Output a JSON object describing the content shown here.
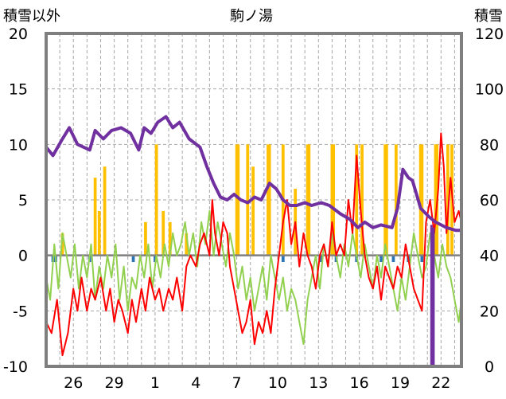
{
  "chart_data": {
    "type": "line",
    "title": "駒ノ湯",
    "left_axis_label": "積雪以外",
    "right_axis_label": "積雪",
    "left_ylim": [
      -10,
      20
    ],
    "right_ylim": [
      0,
      120
    ],
    "left_ticks": [
      "20",
      "15",
      "10",
      "5",
      "0",
      "-5",
      "-10"
    ],
    "right_ticks": [
      "120",
      "100",
      "80",
      "60",
      "40",
      "20",
      "0"
    ],
    "x_ticks": [
      "26",
      "29",
      "1",
      "4",
      "7",
      "10",
      "13",
      "16",
      "19",
      "22"
    ],
    "x_tick_days": [
      2,
      5,
      8,
      11,
      14,
      17,
      20,
      23,
      26,
      29
    ],
    "x_range_days": [
      0,
      30.5
    ],
    "grid": true,
    "colors": {
      "snow_depth": "#7030a0",
      "temperature_max": "#ff0000",
      "temperature_min": "#92d050",
      "precipitation": "#ffc000",
      "snow_change": "#2e75b6",
      "frame": "#7f7f7f"
    },
    "series": [
      {
        "key": "snow_depth",
        "axis": "right",
        "points": [
          [
            0,
            79
          ],
          [
            0.5,
            76
          ],
          [
            1.2,
            82
          ],
          [
            1.7,
            86
          ],
          [
            2.3,
            80
          ],
          [
            3.2,
            78
          ],
          [
            3.6,
            85
          ],
          [
            4.2,
            82
          ],
          [
            4.8,
            85
          ],
          [
            5.5,
            86
          ],
          [
            6.2,
            84
          ],
          [
            6.8,
            78
          ],
          [
            7.2,
            86
          ],
          [
            7.7,
            84
          ],
          [
            8.2,
            88
          ],
          [
            8.8,
            90
          ],
          [
            9.3,
            86
          ],
          [
            9.8,
            88
          ],
          [
            10.5,
            82
          ],
          [
            11.3,
            79
          ],
          [
            11.8,
            72
          ],
          [
            12.3,
            66
          ],
          [
            12.8,
            61
          ],
          [
            13.3,
            60
          ],
          [
            13.8,
            62
          ],
          [
            14.3,
            60
          ],
          [
            14.8,
            59
          ],
          [
            15.3,
            61
          ],
          [
            15.8,
            60
          ],
          [
            16.4,
            66
          ],
          [
            16.9,
            64
          ],
          [
            17.4,
            60
          ],
          [
            17.9,
            58
          ],
          [
            18.4,
            58
          ],
          [
            19.0,
            59
          ],
          [
            19.5,
            58
          ],
          [
            20.2,
            59
          ],
          [
            20.8,
            58
          ],
          [
            21.6,
            55
          ],
          [
            22.3,
            53
          ],
          [
            22.9,
            50
          ],
          [
            23.4,
            52
          ],
          [
            24.0,
            50
          ],
          [
            24.6,
            51
          ],
          [
            25.4,
            50
          ],
          [
            25.8,
            57
          ],
          [
            26.2,
            71
          ],
          [
            26.6,
            68
          ],
          [
            26.9,
            67
          ],
          [
            27.5,
            57
          ],
          [
            28.1,
            54
          ],
          [
            28.6,
            52
          ],
          [
            29.4,
            50
          ],
          [
            30.1,
            49
          ],
          [
            30.5,
            49
          ]
        ]
      },
      {
        "key": "snow_depth_drop",
        "axis": "right",
        "points": [
          [
            28.3,
            51
          ],
          [
            28.3,
            0
          ],
          [
            28.45,
            0
          ],
          [
            28.45,
            50
          ]
        ]
      },
      {
        "key": "temperature_max",
        "axis": "left",
        "points": [
          [
            0,
            -6
          ],
          [
            0.4,
            -7
          ],
          [
            0.8,
            -4
          ],
          [
            1.2,
            -9
          ],
          [
            1.6,
            -7
          ],
          [
            2.0,
            -3
          ],
          [
            2.3,
            -5
          ],
          [
            2.6,
            -2
          ],
          [
            3.0,
            -5
          ],
          [
            3.3,
            -3
          ],
          [
            3.6,
            -4
          ],
          [
            4.0,
            -2
          ],
          [
            4.4,
            -5
          ],
          [
            4.7,
            -3
          ],
          [
            5.0,
            -6
          ],
          [
            5.3,
            -4
          ],
          [
            5.6,
            -5
          ],
          [
            6.0,
            -7
          ],
          [
            6.3,
            -4
          ],
          [
            6.6,
            -6
          ],
          [
            7.0,
            -3
          ],
          [
            7.3,
            -5
          ],
          [
            7.6,
            -2
          ],
          [
            8.0,
            -4
          ],
          [
            8.3,
            -3
          ],
          [
            8.6,
            -5
          ],
          [
            9.0,
            -3
          ],
          [
            9.3,
            -4
          ],
          [
            9.6,
            -2
          ],
          [
            10.0,
            -5
          ],
          [
            10.3,
            -1
          ],
          [
            10.6,
            0
          ],
          [
            11.0,
            -1
          ],
          [
            11.3,
            1
          ],
          [
            11.6,
            2
          ],
          [
            12.0,
            0
          ],
          [
            12.2,
            5
          ],
          [
            12.4,
            2
          ],
          [
            12.7,
            0
          ],
          [
            13.0,
            3
          ],
          [
            13.3,
            2
          ],
          [
            13.5,
            -1
          ],
          [
            13.8,
            -3
          ],
          [
            14.1,
            -5
          ],
          [
            14.4,
            -7
          ],
          [
            14.7,
            -6
          ],
          [
            15.0,
            -4
          ],
          [
            15.3,
            -8
          ],
          [
            15.6,
            -6
          ],
          [
            15.9,
            -7
          ],
          [
            16.2,
            -5
          ],
          [
            16.5,
            -7
          ],
          [
            16.8,
            -3
          ],
          [
            17.1,
            0
          ],
          [
            17.4,
            3
          ],
          [
            17.7,
            5
          ],
          [
            18.0,
            1
          ],
          [
            18.3,
            3
          ],
          [
            18.6,
            -1
          ],
          [
            18.9,
            2
          ],
          [
            19.2,
            0
          ],
          [
            19.5,
            -1
          ],
          [
            19.8,
            -3
          ],
          [
            20.1,
            0
          ],
          [
            20.4,
            1
          ],
          [
            20.7,
            -1
          ],
          [
            21.0,
            3
          ],
          [
            21.3,
            0
          ],
          [
            21.6,
            1
          ],
          [
            21.9,
            0
          ],
          [
            22.2,
            5
          ],
          [
            22.5,
            2
          ],
          [
            22.8,
            9
          ],
          [
            23.1,
            4
          ],
          [
            23.4,
            0
          ],
          [
            23.7,
            -2
          ],
          [
            24.0,
            -3
          ],
          [
            24.3,
            -1
          ],
          [
            24.6,
            -4
          ],
          [
            24.9,
            -1
          ],
          [
            25.2,
            -2
          ],
          [
            25.5,
            -3
          ],
          [
            25.8,
            -1
          ],
          [
            26.1,
            -2
          ],
          [
            26.4,
            1
          ],
          [
            26.7,
            -1
          ],
          [
            27.0,
            -3
          ],
          [
            27.3,
            -4
          ],
          [
            27.6,
            -5
          ],
          [
            27.9,
            3
          ],
          [
            28.2,
            5
          ],
          [
            28.5,
            2
          ],
          [
            28.8,
            6
          ],
          [
            29.0,
            11
          ],
          [
            29.2,
            8
          ],
          [
            29.4,
            2
          ],
          [
            29.7,
            7
          ],
          [
            30.0,
            3
          ],
          [
            30.3,
            4
          ],
          [
            30.5,
            3
          ]
        ]
      },
      {
        "key": "temperature_min",
        "axis": "left",
        "points": [
          [
            0,
            -2
          ],
          [
            0.3,
            -4
          ],
          [
            0.6,
            1
          ],
          [
            0.9,
            -3
          ],
          [
            1.2,
            2
          ],
          [
            1.5,
            0
          ],
          [
            1.8,
            -2
          ],
          [
            2.1,
            1
          ],
          [
            2.4,
            -3
          ],
          [
            2.7,
            0
          ],
          [
            3.0,
            -2
          ],
          [
            3.3,
            1
          ],
          [
            3.6,
            -4
          ],
          [
            3.9,
            -1
          ],
          [
            4.2,
            -3
          ],
          [
            4.5,
            0
          ],
          [
            4.8,
            -2
          ],
          [
            5.1,
            1
          ],
          [
            5.4,
            -4
          ],
          [
            5.7,
            -1
          ],
          [
            6.0,
            -5
          ],
          [
            6.3,
            -2
          ],
          [
            6.6,
            -3
          ],
          [
            6.9,
            0
          ],
          [
            7.2,
            -2
          ],
          [
            7.5,
            1
          ],
          [
            7.8,
            -3
          ],
          [
            8.1,
            0
          ],
          [
            8.4,
            -2
          ],
          [
            8.7,
            1
          ],
          [
            9.0,
            -1
          ],
          [
            9.3,
            2
          ],
          [
            9.6,
            0
          ],
          [
            9.9,
            1
          ],
          [
            10.2,
            3
          ],
          [
            10.5,
            0
          ],
          [
            10.8,
            2
          ],
          [
            11.1,
            -1
          ],
          [
            11.4,
            3
          ],
          [
            11.7,
            1
          ],
          [
            12.0,
            4
          ],
          [
            12.3,
            0
          ],
          [
            12.6,
            3
          ],
          [
            12.9,
            1
          ],
          [
            13.2,
            -1
          ],
          [
            13.5,
            2
          ],
          [
            13.8,
            0
          ],
          [
            14.1,
            -3
          ],
          [
            14.4,
            -1
          ],
          [
            14.7,
            -4
          ],
          [
            15.0,
            -2
          ],
          [
            15.3,
            -5
          ],
          [
            15.6,
            -3
          ],
          [
            15.9,
            -1
          ],
          [
            16.2,
            -4
          ],
          [
            16.5,
            0
          ],
          [
            16.8,
            -2
          ],
          [
            17.1,
            -4
          ],
          [
            17.4,
            -2
          ],
          [
            17.7,
            -5
          ],
          [
            18.0,
            -3
          ],
          [
            18.3,
            -4
          ],
          [
            18.6,
            -6
          ],
          [
            18.9,
            -8
          ],
          [
            19.2,
            -4
          ],
          [
            19.5,
            -2
          ],
          [
            19.8,
            0
          ],
          [
            20.1,
            -3
          ],
          [
            20.4,
            1
          ],
          [
            20.7,
            -1
          ],
          [
            21.0,
            2
          ],
          [
            21.3,
            0
          ],
          [
            21.6,
            -2
          ],
          [
            21.9,
            1
          ],
          [
            22.2,
            -1
          ],
          [
            22.5,
            2
          ],
          [
            22.8,
            0
          ],
          [
            23.1,
            -2
          ],
          [
            23.4,
            1
          ],
          [
            23.7,
            -1
          ],
          [
            24.0,
            -3
          ],
          [
            24.3,
            0
          ],
          [
            24.6,
            -2
          ],
          [
            24.9,
            1
          ],
          [
            25.2,
            -1
          ],
          [
            25.5,
            -3
          ],
          [
            25.8,
            -5
          ],
          [
            26.1,
            -2
          ],
          [
            26.4,
            -4
          ],
          [
            26.7,
            -1
          ],
          [
            27.0,
            2
          ],
          [
            27.3,
            0
          ],
          [
            27.6,
            -2
          ],
          [
            27.9,
            -1
          ],
          [
            28.2,
            2
          ],
          [
            28.5,
            0
          ],
          [
            28.8,
            -2
          ],
          [
            29.1,
            1
          ],
          [
            29.4,
            -1
          ],
          [
            29.7,
            -2
          ],
          [
            30.0,
            -4
          ],
          [
            30.3,
            -6
          ],
          [
            30.5,
            -4
          ]
        ]
      }
    ],
    "precipitation_bars": [
      [
        1.2,
        2
      ],
      [
        3.6,
        7
      ],
      [
        3.9,
        4
      ],
      [
        4.3,
        8
      ],
      [
        7.3,
        3
      ],
      [
        8.1,
        10
      ],
      [
        8.6,
        4
      ],
      [
        9.1,
        3
      ],
      [
        10.3,
        2
      ],
      [
        14.0,
        10
      ],
      [
        14.1,
        10
      ],
      [
        14.8,
        10
      ],
      [
        15.2,
        8
      ],
      [
        16.3,
        10
      ],
      [
        16.4,
        10
      ],
      [
        17.4,
        10
      ],
      [
        18.3,
        6
      ],
      [
        19.2,
        10
      ],
      [
        19.3,
        10
      ],
      [
        21.0,
        10
      ],
      [
        21.1,
        10
      ],
      [
        22.8,
        10
      ],
      [
        23.2,
        10
      ],
      [
        24.9,
        10
      ],
      [
        25.0,
        10
      ],
      [
        25.7,
        10
      ],
      [
        27.5,
        10
      ],
      [
        27.6,
        10
      ],
      [
        28.6,
        10
      ],
      [
        28.7,
        10
      ],
      [
        29.5,
        10
      ],
      [
        29.8,
        10
      ]
    ],
    "snow_change_bars": [
      [
        0.5,
        -0.6
      ],
      [
        0.7,
        -0.6
      ],
      [
        3.2,
        -0.6
      ],
      [
        6.4,
        -0.6
      ],
      [
        8.0,
        -0.6
      ],
      [
        17.4,
        -0.6
      ],
      [
        20.2,
        -0.6
      ],
      [
        21.3,
        -0.6
      ],
      [
        22.8,
        -0.6
      ],
      [
        24.6,
        -0.6
      ],
      [
        25.5,
        -0.6
      ],
      [
        26.6,
        -0.6
      ],
      [
        27.6,
        -0.6
      ]
    ]
  }
}
